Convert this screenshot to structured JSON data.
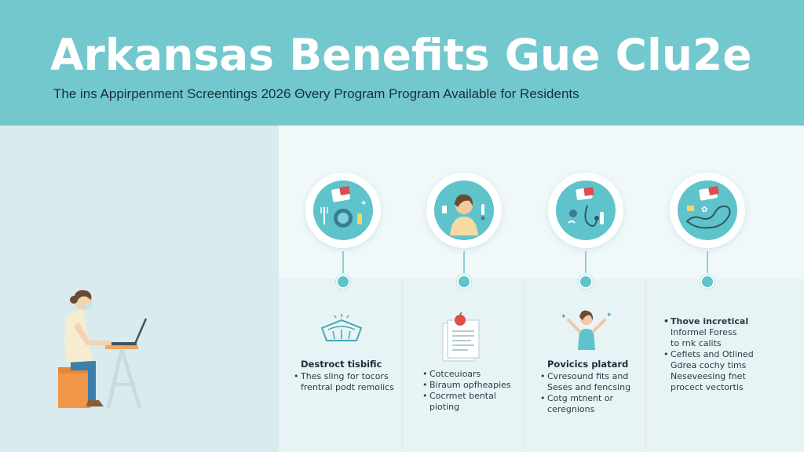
{
  "header": {
    "title": "Arkansas Benefits Gue Clu2e",
    "subtitle": "The ins Appirpenment Screentings 2026 Θvery Program Program Available for Residents"
  },
  "columns": [
    {
      "icon": "document-and-heart-icon",
      "mini_icon": "sunburst-card-icon",
      "heading": "Destroct tisbific",
      "items": [
        "Thes sling for tocors",
        "frentral podt remolics"
      ]
    },
    {
      "icon": "person-portrait-icon",
      "mini_icon": "apple-document-icon",
      "heading": "",
      "items": [
        "Cotceuioars",
        "Biraum opfheapies",
        "Cocrmet bental",
        "pioting"
      ]
    },
    {
      "icon": "stethoscope-icon",
      "mini_icon": "woman-raising-hands-icon",
      "heading": "Povicics platard",
      "items": [
        "Cvresound fits and",
        "Seses and fencsing",
        "Cotg mtnent or",
        "ceregnions"
      ]
    },
    {
      "icon": "map-route-icon",
      "mini_icon": "",
      "heading": "Thove incretical",
      "items": [
        "Informel Foress",
        "to rnk calits",
        "Cefiets and Otlined",
        "Gdrea cochy tims",
        "Neseveesing fnet",
        "procect vectortis"
      ]
    }
  ],
  "colors": {
    "header_bg": "#73c8cd",
    "accent": "#5fc3cb",
    "left_panel": "#d9ebee",
    "right_panel": "#f0f8f9",
    "chair": "#f0974a",
    "person_shirt": "#f6ecd0",
    "person_pants": "#3d7fa8"
  }
}
